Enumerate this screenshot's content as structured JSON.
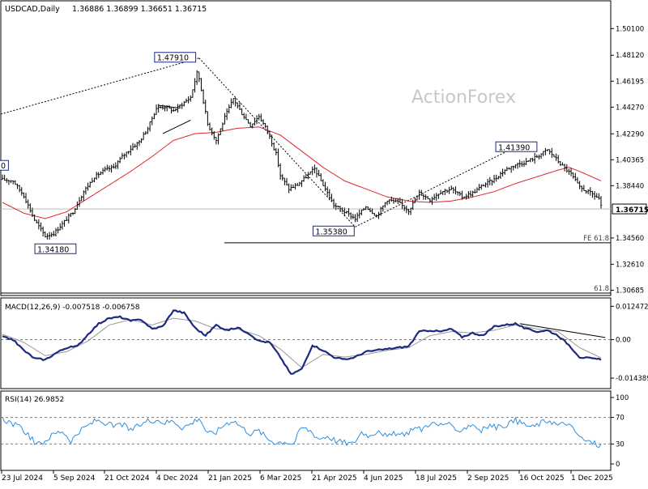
{
  "header": {
    "symbol": "USDCAD,Daily",
    "ohlc": "1.36886 1.36899 1.36651 1.36715",
    "watermark": "ActionForex"
  },
  "colors": {
    "candle": "#000000",
    "ma": "#e0242c",
    "macd": "#1c2a80",
    "signal": "#999999",
    "rsi": "#2f8fe0",
    "grid_dash": "#777777",
    "label_border": "#1c2a80"
  },
  "chart_data": [
    {
      "type": "candlestick",
      "name": "price",
      "x_tick_labels": [
        "23 Jul 2024",
        "5 Sep 2024",
        "21 Oct 2024",
        "4 Dec 2024",
        "21 Jan 2025",
        "6 Mar 2025",
        "21 Apr 2025",
        "4 Jun 2025",
        "18 Jul 2025",
        "2 Sep 2025",
        "16 Oct 2025",
        "1 Dec 2025"
      ],
      "y_tick_labels": [
        "1.50100",
        "1.48120",
        "1.46195",
        "1.44270",
        "1.42290",
        "1.40365",
        "1.38440",
        "1.36715",
        "1.34560",
        "1.32610",
        "1.30685"
      ],
      "ylim": [
        1.3035,
        1.521
      ],
      "close_path": [
        [
          0,
          1.389
        ],
        [
          5,
          1.388
        ],
        [
          10,
          1.377
        ],
        [
          15,
          1.359
        ],
        [
          20,
          1.347
        ],
        [
          24,
          1.349
        ],
        [
          28,
          1.356
        ],
        [
          33,
          1.365
        ],
        [
          38,
          1.38
        ],
        [
          43,
          1.391
        ],
        [
          48,
          1.396
        ],
        [
          52,
          1.398
        ],
        [
          56,
          1.406
        ],
        [
          60,
          1.412
        ],
        [
          64,
          1.417
        ],
        [
          68,
          1.427
        ],
        [
          72,
          1.442
        ],
        [
          76,
          1.443
        ],
        [
          80,
          1.44
        ],
        [
          84,
          1.445
        ],
        [
          88,
          1.45
        ],
        [
          91,
          1.468
        ],
        [
          92,
          1.464
        ],
        [
          96,
          1.43
        ],
        [
          100,
          1.418
        ],
        [
          104,
          1.435
        ],
        [
          108,
          1.449
        ],
        [
          112,
          1.438
        ],
        [
          116,
          1.429
        ],
        [
          120,
          1.436
        ],
        [
          124,
          1.425
        ],
        [
          128,
          1.408
        ],
        [
          130,
          1.392
        ],
        [
          134,
          1.382
        ],
        [
          138,
          1.385
        ],
        [
          142,
          1.391
        ],
        [
          146,
          1.397
        ],
        [
          150,
          1.385
        ],
        [
          155,
          1.37
        ],
        [
          160,
          1.365
        ],
        [
          165,
          1.36
        ],
        [
          170,
          1.369
        ],
        [
          175,
          1.362
        ],
        [
          180,
          1.374
        ],
        [
          185,
          1.372
        ],
        [
          190,
          1.366
        ],
        [
          195,
          1.379
        ],
        [
          200,
          1.374
        ],
        [
          205,
          1.38
        ],
        [
          210,
          1.382
        ],
        [
          215,
          1.376
        ],
        [
          220,
          1.379
        ],
        [
          225,
          1.385
        ],
        [
          230,
          1.389
        ],
        [
          235,
          1.396
        ],
        [
          240,
          1.4
        ],
        [
          245,
          1.402
        ],
        [
          250,
          1.406
        ],
        [
          255,
          1.411
        ],
        [
          258,
          1.406
        ],
        [
          262,
          1.399
        ],
        [
          266,
          1.393
        ],
        [
          270,
          1.383
        ],
        [
          275,
          1.379
        ],
        [
          279,
          1.375
        ],
        [
          280,
          1.369
        ]
      ],
      "ma_path": [
        [
          0,
          1.372
        ],
        [
          10,
          1.364
        ],
        [
          20,
          1.36
        ],
        [
          30,
          1.365
        ],
        [
          40,
          1.375
        ],
        [
          50,
          1.385
        ],
        [
          60,
          1.395
        ],
        [
          70,
          1.406
        ],
        [
          80,
          1.418
        ],
        [
          90,
          1.423
        ],
        [
          100,
          1.424
        ],
        [
          110,
          1.427
        ],
        [
          120,
          1.428
        ],
        [
          130,
          1.422
        ],
        [
          140,
          1.41
        ],
        [
          150,
          1.398
        ],
        [
          160,
          1.388
        ],
        [
          170,
          1.382
        ],
        [
          180,
          1.376
        ],
        [
          190,
          1.373
        ],
        [
          200,
          1.372
        ],
        [
          210,
          1.373
        ],
        [
          220,
          1.376
        ],
        [
          230,
          1.38
        ],
        [
          240,
          1.386
        ],
        [
          250,
          1.391
        ],
        [
          260,
          1.396
        ],
        [
          265,
          1.398
        ],
        [
          270,
          1.395
        ],
        [
          280,
          1.388
        ]
      ],
      "bar_count": 281,
      "annotations": [
        {
          "label": "1.47910",
          "x": 92,
          "y": 1.4791
        },
        {
          "label": "1.34180",
          "x": 22,
          "y": 1.3418
        },
        {
          "label": "1.35380",
          "x": 165,
          "y": 1.3538
        },
        {
          "label": "1.41390",
          "x": 241,
          "y": 1.4139
        },
        {
          "label": "0",
          "x": 0,
          "y": 1.3995
        }
      ],
      "current_price": 1.36715,
      "current_price_label": "1.36715",
      "horizontal_levels": [
        {
          "label": "FE 61.8",
          "y": 1.342
        },
        {
          "label": "61.8",
          "y": 1.3047
        }
      ]
    },
    {
      "type": "line",
      "name": "MACD",
      "title": "MACD(12,26,9) -0.007518 -0.006758",
      "y_tick_labels": [
        "0.012472",
        "0.00",
        "-0.014389"
      ],
      "ylim": [
        -0.018,
        0.015
      ],
      "macd_path": [
        [
          0,
          0.001
        ],
        [
          5,
          0.0
        ],
        [
          10,
          -0.004
        ],
        [
          15,
          -0.007
        ],
        [
          20,
          -0.0075
        ],
        [
          25,
          -0.005
        ],
        [
          30,
          -0.003
        ],
        [
          35,
          -0.0025
        ],
        [
          40,
          0.002
        ],
        [
          45,
          0.006
        ],
        [
          50,
          0.008
        ],
        [
          55,
          0.0085
        ],
        [
          60,
          0.007
        ],
        [
          65,
          0.0075
        ],
        [
          70,
          0.004
        ],
        [
          75,
          0.005
        ],
        [
          80,
          0.011
        ],
        [
          85,
          0.01
        ],
        [
          90,
          0.0045
        ],
        [
          95,
          0.0015
        ],
        [
          100,
          0.0055
        ],
        [
          105,
          0.0035
        ],
        [
          110,
          0.0045
        ],
        [
          115,
          0.0025
        ],
        [
          120,
          -0.0005
        ],
        [
          125,
          -0.001
        ],
        [
          130,
          -0.0065
        ],
        [
          135,
          -0.013
        ],
        [
          140,
          -0.011
        ],
        [
          145,
          -0.002
        ],
        [
          150,
          -0.004
        ],
        [
          155,
          -0.0065
        ],
        [
          160,
          -0.0075
        ],
        [
          165,
          -0.0065
        ],
        [
          170,
          -0.0045
        ],
        [
          175,
          -0.004
        ],
        [
          180,
          -0.0035
        ],
        [
          185,
          -0.003
        ],
        [
          190,
          -0.0025
        ],
        [
          195,
          0.003
        ],
        [
          200,
          0.0035
        ],
        [
          205,
          0.003
        ],
        [
          210,
          0.004
        ],
        [
          215,
          0.001
        ],
        [
          220,
          0.0025
        ],
        [
          225,
          0.0015
        ],
        [
          230,
          0.005
        ],
        [
          235,
          0.0055
        ],
        [
          240,
          0.006
        ],
        [
          245,
          0.004
        ],
        [
          250,
          0.003
        ],
        [
          255,
          0.0035
        ],
        [
          260,
          0.0015
        ],
        [
          265,
          -0.002
        ],
        [
          270,
          -0.0065
        ],
        [
          275,
          -0.007
        ],
        [
          280,
          -0.0075
        ]
      ],
      "signal_path": [
        [
          0,
          0.002
        ],
        [
          10,
          -0.001
        ],
        [
          20,
          -0.006
        ],
        [
          30,
          -0.0045
        ],
        [
          40,
          -0.0005
        ],
        [
          50,
          0.0055
        ],
        [
          60,
          0.0075
        ],
        [
          70,
          0.0055
        ],
        [
          80,
          0.008
        ],
        [
          90,
          0.007
        ],
        [
          100,
          0.004
        ],
        [
          110,
          0.004
        ],
        [
          120,
          0.0015
        ],
        [
          130,
          -0.0035
        ],
        [
          140,
          -0.0105
        ],
        [
          150,
          -0.0055
        ],
        [
          160,
          -0.0065
        ],
        [
          170,
          -0.0055
        ],
        [
          180,
          -0.004
        ],
        [
          190,
          -0.003
        ],
        [
          200,
          0.0015
        ],
        [
          210,
          0.003
        ],
        [
          220,
          0.0025
        ],
        [
          230,
          0.0035
        ],
        [
          240,
          0.0055
        ],
        [
          250,
          0.004
        ],
        [
          260,
          0.003
        ],
        [
          270,
          -0.003
        ],
        [
          280,
          -0.0068
        ]
      ],
      "trendline": [
        [
          242,
          0.006
        ],
        [
          282,
          0.0008
        ]
      ]
    },
    {
      "type": "line",
      "name": "RSI",
      "title": "RSI(14) 26.9852",
      "y_tick_labels": [
        "100",
        "70",
        "30",
        "0"
      ],
      "ylim": [
        0,
        100
      ],
      "levels": [
        70,
        30
      ],
      "rsi_path": [
        [
          0,
          68
        ],
        [
          4,
          62
        ],
        [
          8,
          55
        ],
        [
          12,
          45
        ],
        [
          16,
          28
        ],
        [
          20,
          35
        ],
        [
          24,
          45
        ],
        [
          28,
          50
        ],
        [
          32,
          35
        ],
        [
          36,
          48
        ],
        [
          40,
          58
        ],
        [
          44,
          66
        ],
        [
          48,
          62
        ],
        [
          52,
          56
        ],
        [
          56,
          60
        ],
        [
          60,
          50
        ],
        [
          64,
          58
        ],
        [
          68,
          65
        ],
        [
          72,
          67
        ],
        [
          76,
          62
        ],
        [
          80,
          65
        ],
        [
          84,
          55
        ],
        [
          88,
          60
        ],
        [
          92,
          70
        ],
        [
          96,
          45
        ],
        [
          100,
          48
        ],
        [
          104,
          60
        ],
        [
          108,
          66
        ],
        [
          112,
          55
        ],
        [
          116,
          46
        ],
        [
          120,
          50
        ],
        [
          124,
          38
        ],
        [
          128,
          32
        ],
        [
          132,
          34
        ],
        [
          136,
          30
        ],
        [
          140,
          55
        ],
        [
          144,
          50
        ],
        [
          148,
          38
        ],
        [
          152,
          42
        ],
        [
          156,
          35
        ],
        [
          160,
          32
        ],
        [
          164,
          30
        ],
        [
          168,
          48
        ],
        [
          172,
          42
        ],
        [
          176,
          52
        ],
        [
          180,
          40
        ],
        [
          184,
          46
        ],
        [
          188,
          42
        ],
        [
          192,
          55
        ],
        [
          196,
          52
        ],
        [
          200,
          62
        ],
        [
          204,
          58
        ],
        [
          208,
          62
        ],
        [
          212,
          48
        ],
        [
          216,
          55
        ],
        [
          220,
          60
        ],
        [
          224,
          50
        ],
        [
          228,
          58
        ],
        [
          232,
          55
        ],
        [
          236,
          60
        ],
        [
          240,
          65
        ],
        [
          244,
          60
        ],
        [
          248,
          55
        ],
        [
          252,
          62
        ],
        [
          256,
          66
        ],
        [
          260,
          58
        ],
        [
          264,
          62
        ],
        [
          268,
          48
        ],
        [
          272,
          35
        ],
        [
          276,
          32
        ],
        [
          280,
          27
        ]
      ]
    }
  ]
}
